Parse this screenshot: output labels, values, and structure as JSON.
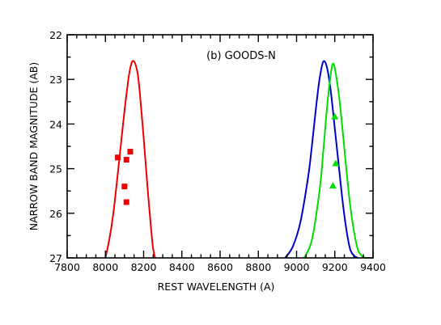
{
  "chart_data": {
    "type": "line",
    "annotation": "(b) GOODS-N",
    "xlabel": "REST WAVELENGTH (A)",
    "ylabel": "NARROW BAND MAGNITUDE (AB)",
    "xlim": [
      7800,
      9400
    ],
    "ylim": [
      27,
      22
    ],
    "x_ticks": [
      7800,
      8000,
      8200,
      8400,
      8600,
      8800,
      9000,
      9200,
      9400
    ],
    "y_ticks": [
      22,
      23,
      24,
      25,
      26,
      27
    ],
    "x_minor_step": 50,
    "y_minor_step": 0.5,
    "grid": false,
    "filter_curves": [
      {
        "color": "#ee0000",
        "x": [
          8000,
          8020,
          8040,
          8060,
          8080,
          8100,
          8120,
          8130,
          8140,
          8150,
          8160,
          8170,
          8180,
          8200,
          8220,
          8240,
          8250,
          8260
        ],
        "y": [
          27.0,
          26.6,
          26.05,
          25.3,
          24.5,
          23.7,
          23.0,
          22.75,
          22.6,
          22.6,
          22.7,
          22.9,
          23.3,
          24.3,
          25.4,
          26.4,
          26.8,
          27.0
        ]
      },
      {
        "color": "#0000cc",
        "x": [
          8940,
          8980,
          9020,
          9060,
          9080,
          9100,
          9120,
          9140,
          9160,
          9180,
          9200,
          9220,
          9240,
          9260,
          9280,
          9300,
          9320
        ],
        "y": [
          27.0,
          26.75,
          26.2,
          25.2,
          24.5,
          23.7,
          23.0,
          22.6,
          22.75,
          23.3,
          24.1,
          24.9,
          25.7,
          26.35,
          26.8,
          26.95,
          27.0
        ]
      },
      {
        "color": "#00dd00",
        "x": [
          9040,
          9080,
          9120,
          9140,
          9160,
          9180,
          9190,
          9200,
          9220,
          9240,
          9260,
          9280,
          9300,
          9320,
          9340,
          9360,
          9380
        ],
        "y": [
          27.0,
          26.6,
          25.5,
          24.6,
          23.6,
          22.85,
          22.65,
          22.75,
          23.3,
          24.1,
          25.0,
          25.8,
          26.4,
          26.8,
          26.95,
          27.0,
          27.0
        ]
      }
    ],
    "points": [
      {
        "marker": "square",
        "color": "#ee0000",
        "x": [
          8065,
          8110,
          8130,
          8100,
          8110
        ],
        "y": [
          24.75,
          24.8,
          24.62,
          25.4,
          25.75
        ]
      },
      {
        "marker": "triangle",
        "color": "#00dd00",
        "x": [
          9200,
          9205,
          9190
        ],
        "y": [
          23.83,
          24.88,
          25.38
        ]
      }
    ]
  }
}
